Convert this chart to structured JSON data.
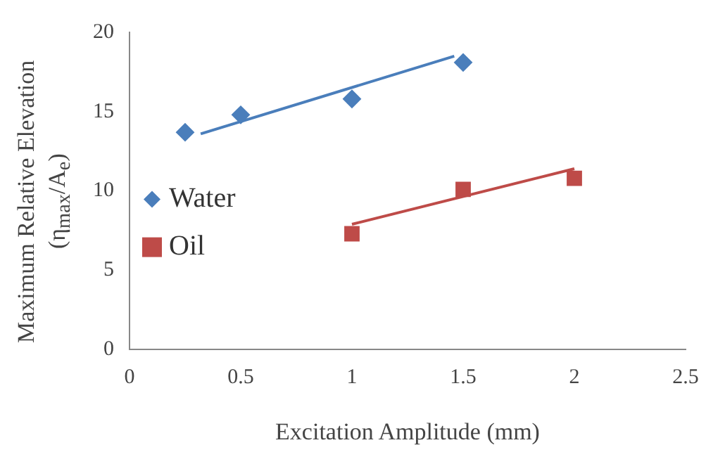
{
  "chart_data": {
    "type": "scatter",
    "xlabel": "Excitation Amplitude (mm)",
    "ylabel": "Maximum Relative  Elevation (η$_{max}$/A$_{e}$)",
    "xlim": [
      0,
      2.5
    ],
    "xticks": [
      0,
      0.5,
      1,
      1.5,
      2,
      2.5
    ],
    "ylim": [
      0,
      20
    ],
    "yticks": [
      0,
      5,
      10,
      15,
      20
    ],
    "grid": false,
    "legend": "left",
    "series": [
      {
        "name": "Water",
        "marker": "diamond",
        "color": "#4a7ebb",
        "x": [
          0.25,
          0.5,
          1,
          1.5
        ],
        "values": [
          13.7,
          14.8,
          15.8,
          18.1
        ]
      },
      {
        "name": "Oil",
        "marker": "square",
        "color": "#be4b48",
        "x": [
          1,
          1.5,
          2
        ],
        "values": [
          7.3,
          10.1,
          10.8
        ]
      },
      {
        "type": "line",
        "marker": "none",
        "color": "#4a7ebb",
        "x": [
          0.32,
          1.46
        ],
        "values": [
          13.6,
          18.5
        ]
      },
      {
        "type": "line",
        "marker": "none",
        "color": "#be4b48",
        "x": [
          1,
          2
        ],
        "values": [
          7.9,
          11.4
        ]
      }
    ]
  }
}
